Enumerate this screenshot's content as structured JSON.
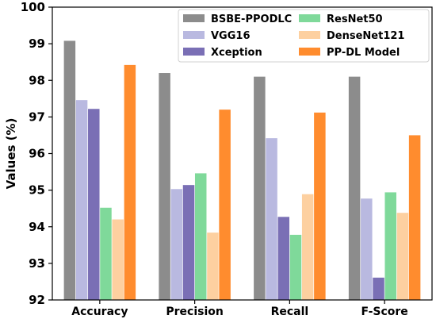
{
  "chart_data": {
    "type": "bar",
    "categories": [
      "Accuracy",
      "Precision",
      "Recall",
      "F-Score"
    ],
    "series": [
      {
        "name": "BSBE-PPODLC",
        "color": "#8c8c8c",
        "values": [
          99.08,
          98.2,
          98.1,
          98.1
        ]
      },
      {
        "name": "VGG16",
        "color": "#b9b9e0",
        "values": [
          97.46,
          95.03,
          96.42,
          94.77
        ]
      },
      {
        "name": "Xception",
        "color": "#7a6fb5",
        "values": [
          97.22,
          95.14,
          94.27,
          92.61
        ]
      },
      {
        "name": "ResNet50",
        "color": "#7fd99a",
        "values": [
          94.52,
          95.46,
          93.78,
          94.94
        ]
      },
      {
        "name": "DenseNet121",
        "color": "#fdd0a0",
        "values": [
          94.2,
          93.84,
          94.89,
          94.38
        ]
      },
      {
        "name": "PP-DL Model",
        "color": "#ff8c2e",
        "values": [
          98.42,
          97.2,
          97.12,
          96.5
        ]
      }
    ],
    "xlabel": "",
    "ylabel": "Values (%)",
    "ylim": [
      92,
      100
    ],
    "yticks": [
      92,
      93,
      94,
      95,
      96,
      97,
      98,
      99,
      100
    ],
    "grid": false,
    "legend_position": "top-right"
  }
}
